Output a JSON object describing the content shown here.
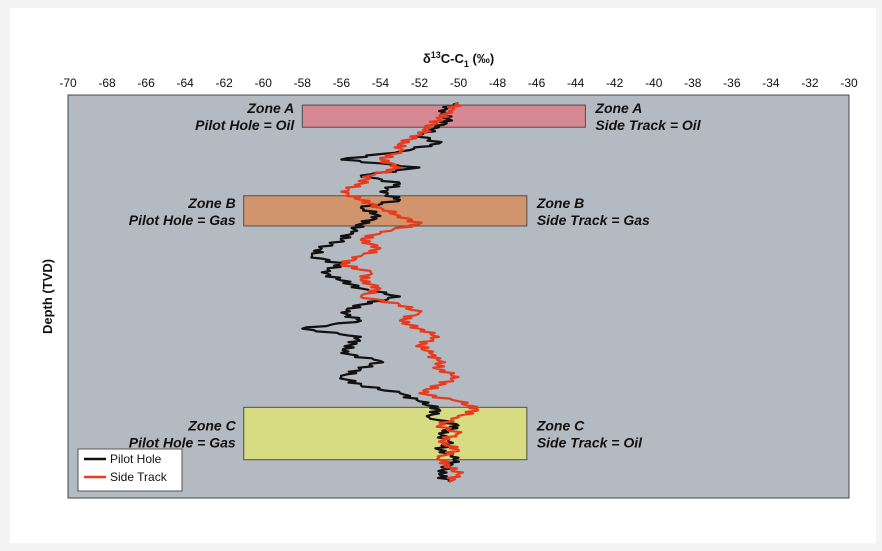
{
  "chart_data": {
    "type": "line",
    "title": "",
    "xlabel": "δ¹³C-C₁ (‰)",
    "xlabel_parts": {
      "delta": "δ",
      "sup": "13",
      "mid": "C-C",
      "sub": "1",
      "unit": " (‰)"
    },
    "ylabel": "Depth (TVD)",
    "xlim": [
      -70,
      -30
    ],
    "ylim_relative_depth": [
      0,
      1
    ],
    "x_axis_position": "top",
    "x_ticks": [
      -70,
      -68,
      -66,
      -64,
      -62,
      -60,
      -58,
      -56,
      -54,
      -52,
      -50,
      -48,
      -46,
      -44,
      -42,
      -40,
      -38,
      -36,
      -34,
      -32,
      -30
    ],
    "grid": false,
    "legend_placement": "bottom-left",
    "plot_background": "#b4bac2",
    "series": [
      {
        "name": "Pilot Hole",
        "color": "#111111",
        "depth": [
          0.02,
          0.04,
          0.06,
          0.08,
          0.1,
          0.12,
          0.14,
          0.16,
          0.18,
          0.2,
          0.22,
          0.24,
          0.26,
          0.28,
          0.3,
          0.32,
          0.34,
          0.36,
          0.38,
          0.4,
          0.42,
          0.44,
          0.46,
          0.48,
          0.5,
          0.52,
          0.54,
          0.56,
          0.58,
          0.6,
          0.62,
          0.64,
          0.66,
          0.68,
          0.7,
          0.72,
          0.74,
          0.76,
          0.78,
          0.8,
          0.82,
          0.84,
          0.86,
          0.88,
          0.9,
          0.92,
          0.94,
          0.96
        ],
        "values": [
          -50,
          -51,
          -50.5,
          -51,
          -52,
          -51,
          -53,
          -56,
          -52,
          -55,
          -53,
          -54,
          -53,
          -55,
          -54,
          -55,
          -55.5,
          -56,
          -57,
          -57.5,
          -56,
          -57,
          -56,
          -55,
          -53,
          -55,
          -56,
          -55,
          -58,
          -55,
          -55.5,
          -56,
          -54,
          -55,
          -56,
          -55,
          -53,
          -52,
          -51,
          -51.5,
          -50,
          -51,
          -50.5,
          -51,
          -50,
          -50.5,
          -51,
          -50.5
        ]
      },
      {
        "name": "Side Track",
        "color": "#e83a1e",
        "depth": [
          0.02,
          0.04,
          0.06,
          0.08,
          0.1,
          0.12,
          0.14,
          0.16,
          0.18,
          0.2,
          0.22,
          0.24,
          0.26,
          0.28,
          0.3,
          0.32,
          0.34,
          0.36,
          0.38,
          0.4,
          0.42,
          0.44,
          0.46,
          0.48,
          0.5,
          0.52,
          0.54,
          0.56,
          0.58,
          0.6,
          0.62,
          0.64,
          0.66,
          0.68,
          0.7,
          0.72,
          0.74,
          0.76,
          0.78,
          0.8,
          0.82,
          0.84,
          0.86,
          0.88,
          0.9,
          0.92,
          0.94,
          0.96
        ],
        "values": [
          -50,
          -50.5,
          -51,
          -51.5,
          -52,
          -53,
          -53,
          -54,
          -53,
          -54.5,
          -55,
          -56,
          -55,
          -54,
          -53,
          -52,
          -54,
          -55,
          -54,
          -55,
          -56,
          -54.5,
          -55,
          -54,
          -55,
          -53,
          -52,
          -53,
          -52,
          -51,
          -52,
          -51.5,
          -51,
          -51,
          -50,
          -51,
          -52,
          -50,
          -49,
          -50,
          -51,
          -50,
          -51,
          -50,
          -51,
          -50.5,
          -50,
          -50.5
        ]
      }
    ],
    "zones": [
      {
        "name": "Zone A",
        "x_range": [
          -58,
          -43.5
        ],
        "depth_range": [
          0.025,
          0.08
        ],
        "fill": "#d9838f",
        "left_label": [
          "Zone A",
          "Pilot Hole = Oil"
        ],
        "right_label": [
          "Zone A",
          "Side Track = Oil"
        ]
      },
      {
        "name": "Zone B",
        "x_range": [
          -61,
          -46.5
        ],
        "depth_range": [
          0.25,
          0.325
        ],
        "fill": "#d59063",
        "left_label": [
          "Zone B",
          "Pilot Hole = Gas"
        ],
        "right_label": [
          "Zone B",
          "Side Track = Gas"
        ]
      },
      {
        "name": "Zone C",
        "x_range": [
          -61,
          -46.5
        ],
        "depth_range": [
          0.775,
          0.905
        ],
        "fill": "#dbdf7a",
        "left_label": [
          "Zone C",
          "Pilot Hole = Gas"
        ],
        "right_label": [
          "Zone C",
          "Side Track = Oil"
        ]
      }
    ]
  }
}
